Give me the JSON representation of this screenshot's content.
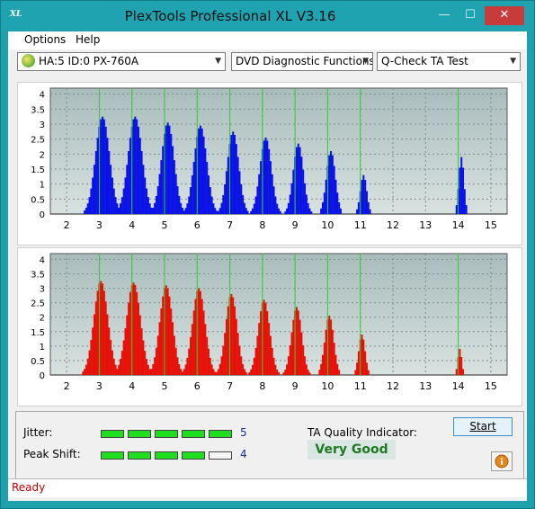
{
  "window": {
    "title": "PlexTools Professional XL V3.16",
    "app_icon_text": "XL",
    "minimize": "—",
    "maximize": "☐",
    "close": "✕"
  },
  "menu": {
    "options": "Options",
    "help": "Help"
  },
  "toolbar": {
    "drive": "HA:5 ID:0  PX-760A",
    "function": "DVD Diagnostic Functions",
    "test": "Q-Check TA Test"
  },
  "colors": {
    "top_bars": "#0a12e6",
    "bottom_bars": "#e6120a",
    "marker_lines": "#2fd02f",
    "plot_bg_top": "#a9bcbc",
    "plot_bg_bottom": "#d8e2e0"
  },
  "chart_data": [
    {
      "type": "bar",
      "name_hint": "top",
      "x_ticks": [
        "2",
        "3",
        "4",
        "5",
        "6",
        "7",
        "8",
        "9",
        "10",
        "11",
        "12",
        "13",
        "14",
        "15"
      ],
      "y_ticks": [
        "0",
        "0.5",
        "1",
        "1.5",
        "2",
        "2.5",
        "3",
        "3.5",
        "4"
      ],
      "xlim": [
        1.5,
        15.5
      ],
      "ylim": [
        0,
        4.2
      ],
      "marker_lines": [
        3,
        4,
        5,
        6,
        7,
        8,
        9,
        10,
        11,
        14
      ],
      "peaks": [
        {
          "center": 3.1,
          "height": 3.25,
          "width": 0.55
        },
        {
          "center": 4.1,
          "height": 3.25,
          "width": 0.55
        },
        {
          "center": 5.1,
          "height": 3.05,
          "width": 0.5
        },
        {
          "center": 6.1,
          "height": 2.95,
          "width": 0.5
        },
        {
          "center": 7.1,
          "height": 2.75,
          "width": 0.45
        },
        {
          "center": 8.1,
          "height": 2.55,
          "width": 0.45
        },
        {
          "center": 9.1,
          "height": 2.35,
          "width": 0.4
        },
        {
          "center": 10.1,
          "height": 2.1,
          "width": 0.35
        },
        {
          "center": 11.1,
          "height": 1.3,
          "width": 0.25
        },
        {
          "center": 14.1,
          "height": 1.9,
          "width": 0.2
        }
      ],
      "grid": true
    },
    {
      "type": "bar",
      "name_hint": "bottom",
      "x_ticks": [
        "2",
        "3",
        "4",
        "5",
        "6",
        "7",
        "8",
        "9",
        "10",
        "11",
        "12",
        "13",
        "14",
        "15"
      ],
      "y_ticks": [
        "0",
        "0.5",
        "1",
        "1.5",
        "2",
        "2.5",
        "3",
        "3.5",
        "4"
      ],
      "xlim": [
        1.5,
        15.5
      ],
      "ylim": [
        0,
        4.2
      ],
      "marker_lines": [
        3,
        4,
        5,
        6,
        7,
        8,
        9,
        10,
        11,
        14
      ],
      "peaks": [
        {
          "center": 3.05,
          "height": 3.25,
          "width": 0.55
        },
        {
          "center": 4.05,
          "height": 3.2,
          "width": 0.55
        },
        {
          "center": 5.05,
          "height": 3.1,
          "width": 0.5
        },
        {
          "center": 6.05,
          "height": 3.0,
          "width": 0.5
        },
        {
          "center": 7.05,
          "height": 2.8,
          "width": 0.45
        },
        {
          "center": 8.05,
          "height": 2.6,
          "width": 0.45
        },
        {
          "center": 9.05,
          "height": 2.35,
          "width": 0.4
        },
        {
          "center": 10.05,
          "height": 2.05,
          "width": 0.35
        },
        {
          "center": 11.05,
          "height": 1.4,
          "width": 0.25
        },
        {
          "center": 14.05,
          "height": 0.9,
          "width": 0.15
        }
      ],
      "grid": true
    }
  ],
  "results": {
    "jitter_label": "Jitter:",
    "jitter_value": "5",
    "jitter_level": 5,
    "peak_label": "Peak Shift:",
    "peak_value": "4",
    "peak_level": 4,
    "segments_total": 5,
    "ta_label": "TA Quality Indicator:",
    "ta_value": "Very Good",
    "start_button": "Start",
    "info_icon": "info-icon"
  },
  "status": {
    "text": "Ready"
  }
}
